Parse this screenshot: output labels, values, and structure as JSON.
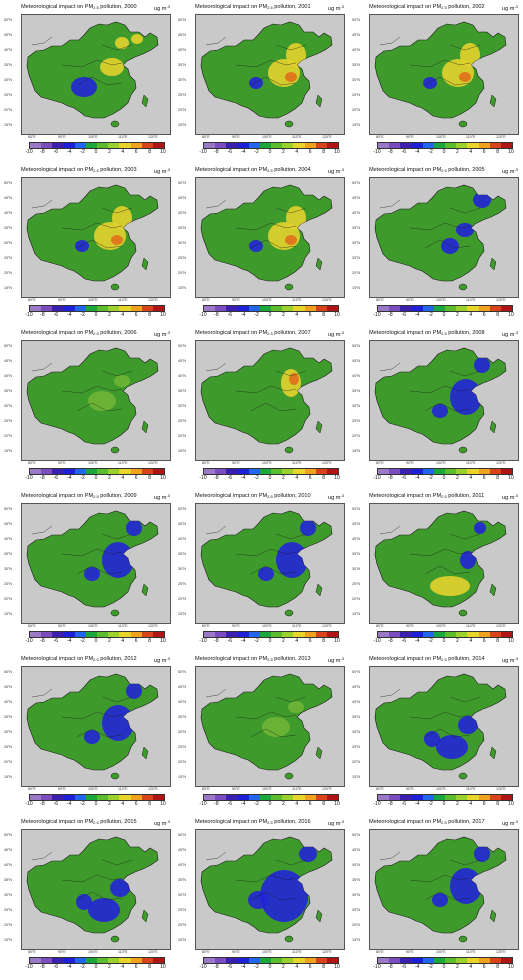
{
  "panel_title_prefix": "Meteorological impact on PM",
  "panel_title_sub": "2.5",
  "panel_title_suffix": " pollution, ",
  "unit_base": "ug m",
  "unit_exp": "-3",
  "lat_labels": [
    "50°N",
    "45°N",
    "40°N",
    "35°N",
    "30°N",
    "25°N",
    "20°N",
    "15°N"
  ],
  "lon_labels": [
    "80°E",
    "90°E",
    "100°E",
    "110°E",
    "120°E"
  ],
  "colorbar_ticks": [
    "-10",
    "-8",
    "-6",
    "-4",
    "-2",
    "0",
    "2",
    "4",
    "6",
    "8",
    "10"
  ],
  "colorbar_colors": [
    "#9b79c9",
    "#7b4dbf",
    "#3b1fb0",
    "#1c20d8",
    "#2266ee",
    "#1aa83a",
    "#5bbd2e",
    "#9bd12c",
    "#e8d52a",
    "#f0a21e",
    "#d8431a",
    "#b01515"
  ],
  "colors": {
    "ocean": "#c9c9c9",
    "land_base": "#3f9a2c",
    "neutral": "#6fb536",
    "negative": "#2225d6",
    "positive": "#e3d22d",
    "strong_positive": "#e0701c"
  },
  "panels": [
    {
      "year": "2000",
      "tone": "mixed_south_blue"
    },
    {
      "year": "2001",
      "tone": "positive_east"
    },
    {
      "year": "2002",
      "tone": "positive_east"
    },
    {
      "year": "2003",
      "tone": "positive_east"
    },
    {
      "year": "2004",
      "tone": "positive_east"
    },
    {
      "year": "2005",
      "tone": "negative_north"
    },
    {
      "year": "2006",
      "tone": "neutral"
    },
    {
      "year": "2007",
      "tone": "positive_north"
    },
    {
      "year": "2008",
      "tone": "negative_east"
    },
    {
      "year": "2009",
      "tone": "negative_east"
    },
    {
      "year": "2010",
      "tone": "negative_east"
    },
    {
      "year": "2011",
      "tone": "mixed_south_yellow"
    },
    {
      "year": "2012",
      "tone": "negative_east"
    },
    {
      "year": "2013",
      "tone": "neutral"
    },
    {
      "year": "2014",
      "tone": "negative_south"
    },
    {
      "year": "2015",
      "tone": "negative_south"
    },
    {
      "year": "2016",
      "tone": "negative_strong"
    },
    {
      "year": "2017",
      "tone": "negative_east"
    }
  ]
}
